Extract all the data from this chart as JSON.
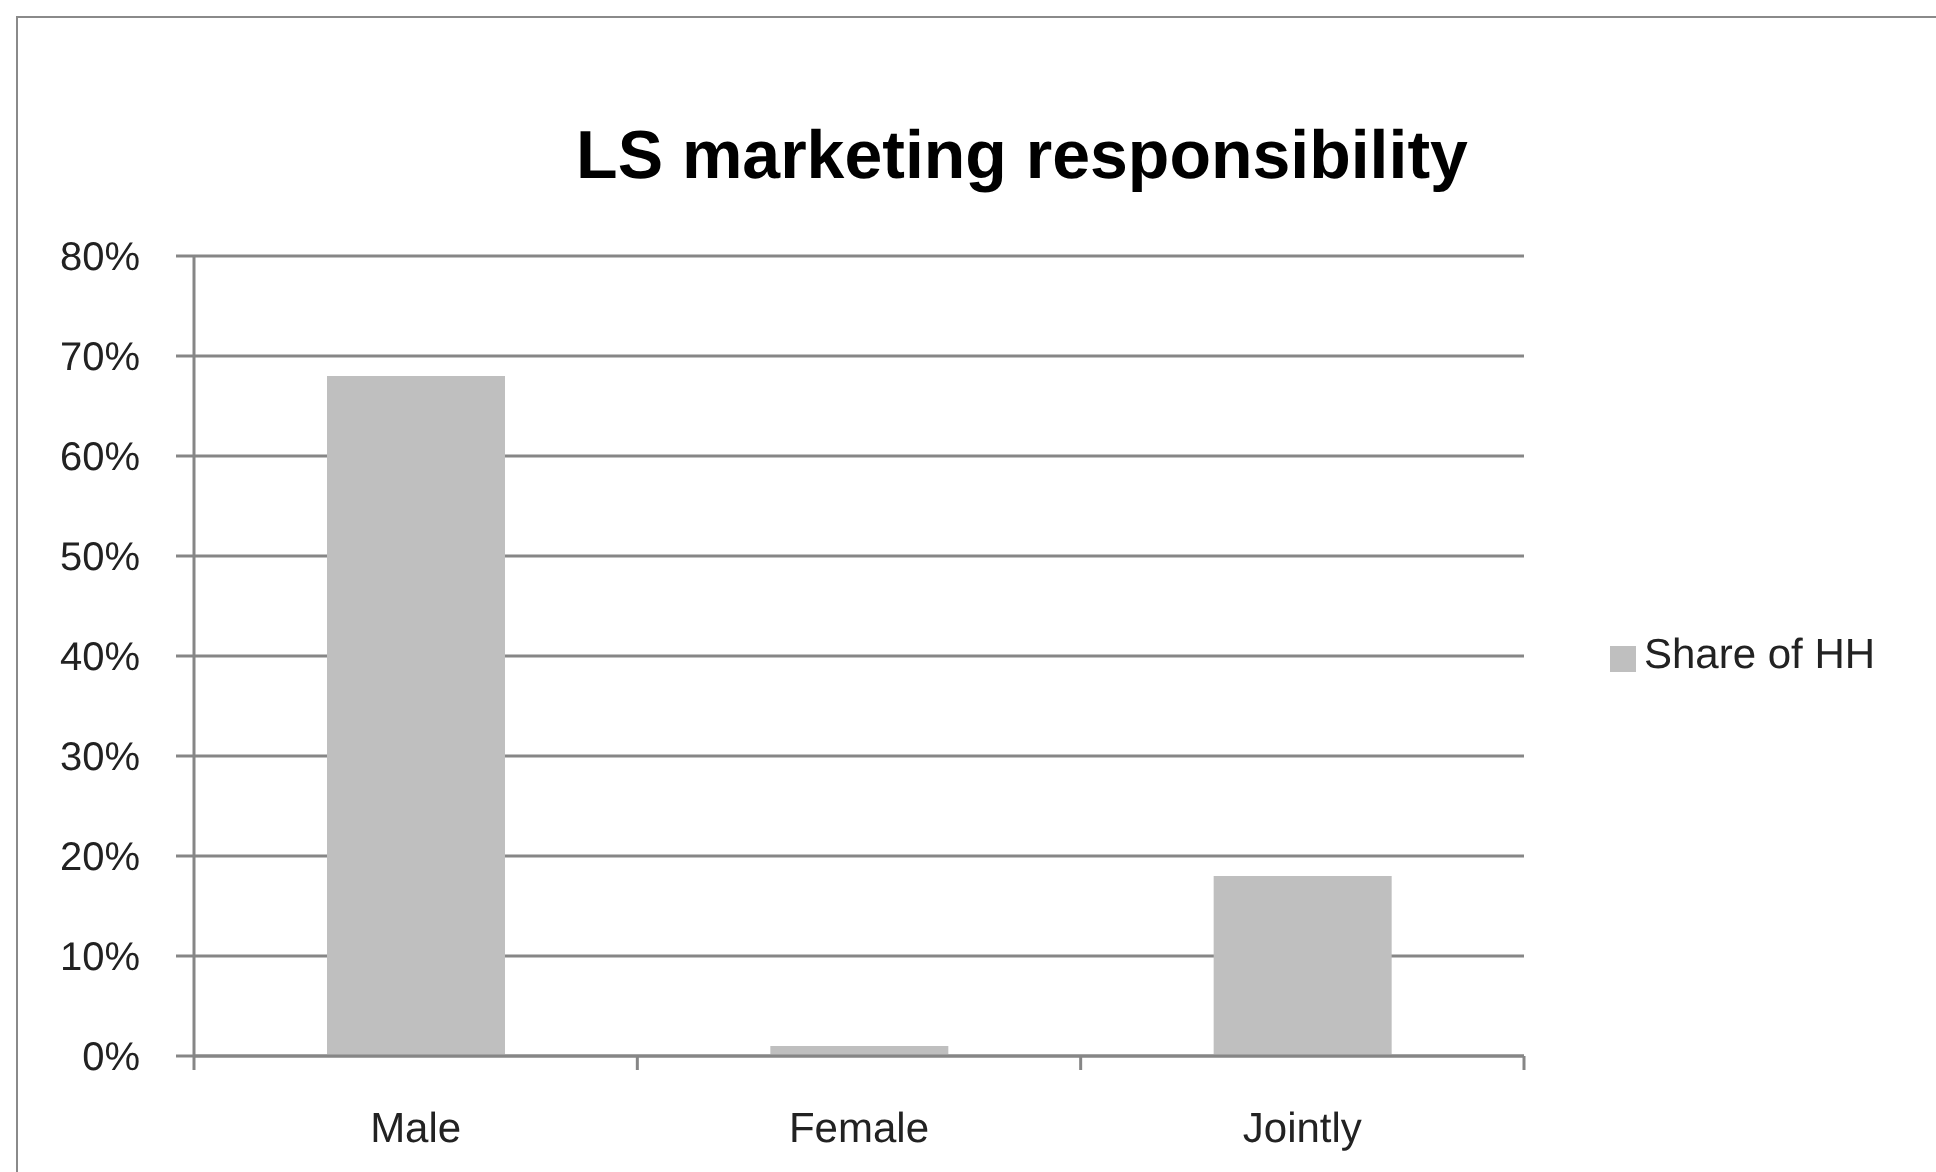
{
  "chart_data": {
    "type": "bar",
    "title": "LS marketing responsibility",
    "categories": [
      "Male",
      "Female",
      "Jointly"
    ],
    "series": [
      {
        "name": "Share of HH",
        "color": "#bfbfbf",
        "values": [
          68,
          1,
          18
        ]
      }
    ],
    "ylim": [
      0,
      80
    ],
    "yticks": [
      {
        "value": 0,
        "label": "0%"
      },
      {
        "value": 10,
        "label": "10%"
      },
      {
        "value": 20,
        "label": "20%"
      },
      {
        "value": 30,
        "label": "30%"
      },
      {
        "value": 40,
        "label": "40%"
      },
      {
        "value": 50,
        "label": "50%"
      },
      {
        "value": 60,
        "label": "60%"
      },
      {
        "value": 70,
        "label": "70%"
      },
      {
        "value": 80,
        "label": "80%"
      }
    ],
    "grid": "y",
    "legend": "right"
  }
}
